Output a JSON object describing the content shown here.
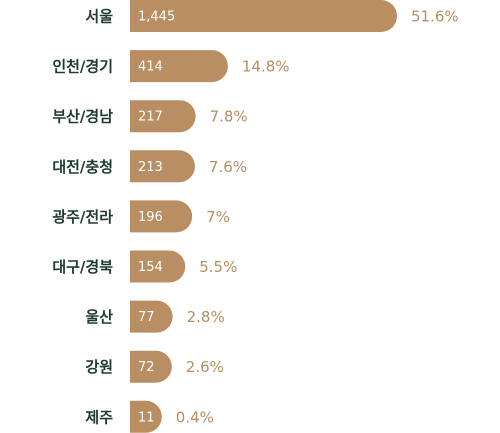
{
  "chart_data": {
    "type": "bar",
    "orientation": "horizontal",
    "color": "#b88e62",
    "categories": [
      "서울",
      "인천/경기",
      "부산/경남",
      "대전/충청",
      "광주/전라",
      "대구/경북",
      "울산",
      "강원",
      "제주"
    ],
    "series": [
      {
        "values": [
          1445,
          414,
          217,
          213,
          196,
          154,
          77,
          72,
          11
        ],
        "value_labels": [
          "1,445",
          "414",
          "217",
          "213",
          "196",
          "154",
          "77",
          "72",
          "11"
        ]
      },
      {
        "values": [
          51.6,
          14.8,
          7.8,
          7.6,
          7,
          5.5,
          2.8,
          2.6,
          0.4
        ],
        "value_labels": [
          "51.6%",
          "14.8%",
          "7.8%",
          "7.6%",
          "7%",
          "5.5%",
          "2.8%",
          "2.6%",
          "0.4%"
        ]
      }
    ]
  }
}
